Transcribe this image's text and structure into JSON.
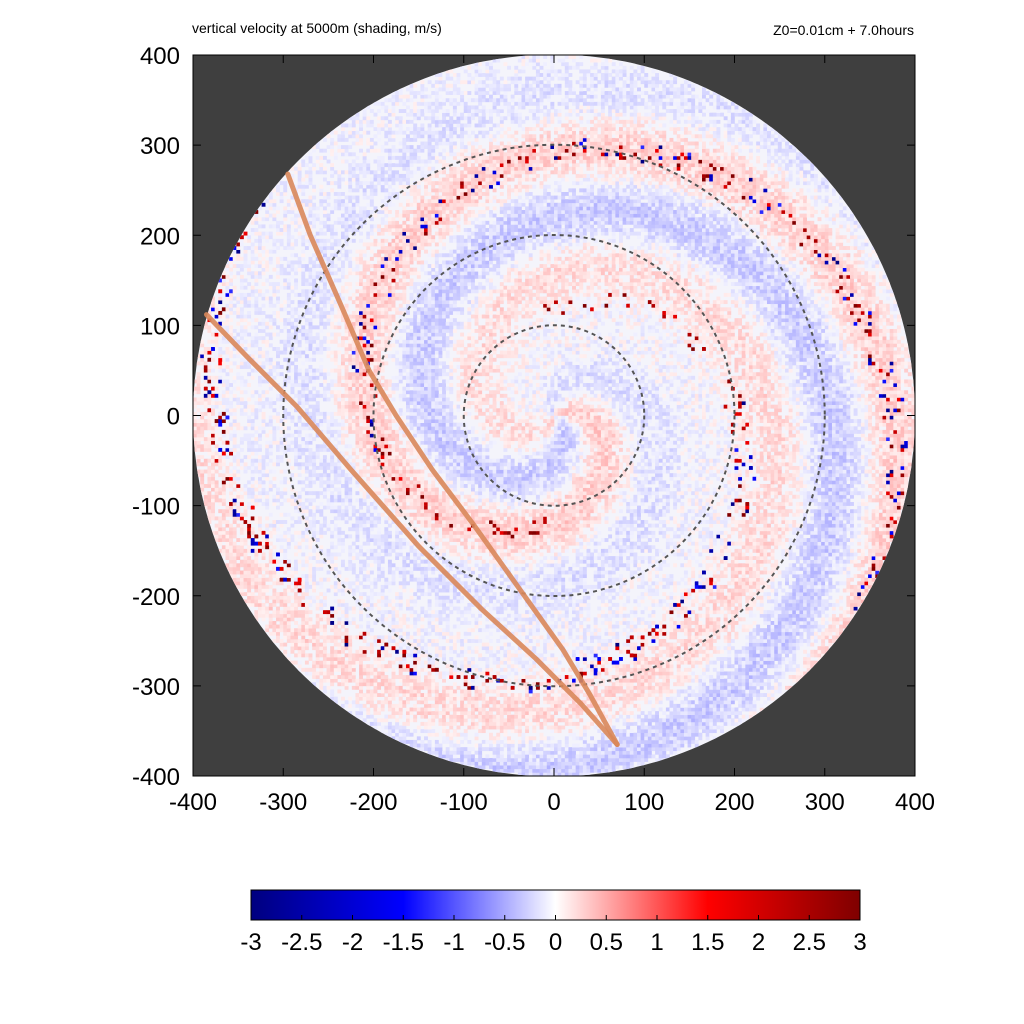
{
  "chart_data": {
    "type": "heatmap",
    "title": "vertical velocity at 5000m (shading, m/s)",
    "subtitle": "Z0=0.01cm  + 7.0hours",
    "xlim": [
      -400,
      400
    ],
    "ylim": [
      -400,
      400
    ],
    "x_ticks": [
      -400,
      -300,
      -200,
      -100,
      0,
      100,
      200,
      300,
      400
    ],
    "y_ticks": [
      -400,
      -300,
      -200,
      -100,
      0,
      100,
      200,
      300,
      400
    ],
    "domain_radius": 400,
    "reference_circles_radius": [
      100,
      200,
      300
    ],
    "colorbar": {
      "min": -3,
      "max": 3,
      "ticks": [
        -3,
        -2.5,
        -2,
        -1.5,
        -1,
        -0.5,
        0,
        0.5,
        1,
        1.5,
        2,
        2.5,
        3
      ],
      "tick_labels": [
        "-3",
        "-2.5",
        "-2",
        "-1.5",
        "-1",
        "-0.5",
        "0",
        "0.5",
        "1",
        "1.5",
        "2",
        "2.5",
        "3"
      ],
      "colors": [
        "#00007f",
        "#0000ff",
        "#ffffff",
        "#ff0000",
        "#7f0000"
      ]
    },
    "tracks": [
      {
        "color": "#d9875a",
        "points": [
          [
            -295,
            268
          ],
          [
            -270,
            200
          ],
          [
            -235,
            120
          ],
          [
            -205,
            50
          ],
          [
            -175,
            0
          ],
          [
            -135,
            -60
          ],
          [
            -90,
            -120
          ],
          [
            -40,
            -190
          ],
          [
            10,
            -260
          ],
          [
            40,
            -310
          ],
          [
            70,
            -365
          ]
        ]
      },
      {
        "color": "#d9875a",
        "points": [
          [
            -385,
            112
          ],
          [
            -340,
            65
          ],
          [
            -285,
            10
          ],
          [
            -225,
            -60
          ],
          [
            -150,
            -145
          ],
          [
            -80,
            -215
          ],
          [
            -20,
            -270
          ],
          [
            30,
            -320
          ],
          [
            70,
            -365
          ]
        ]
      }
    ],
    "outside_domain_color": "#3f3f3f"
  }
}
